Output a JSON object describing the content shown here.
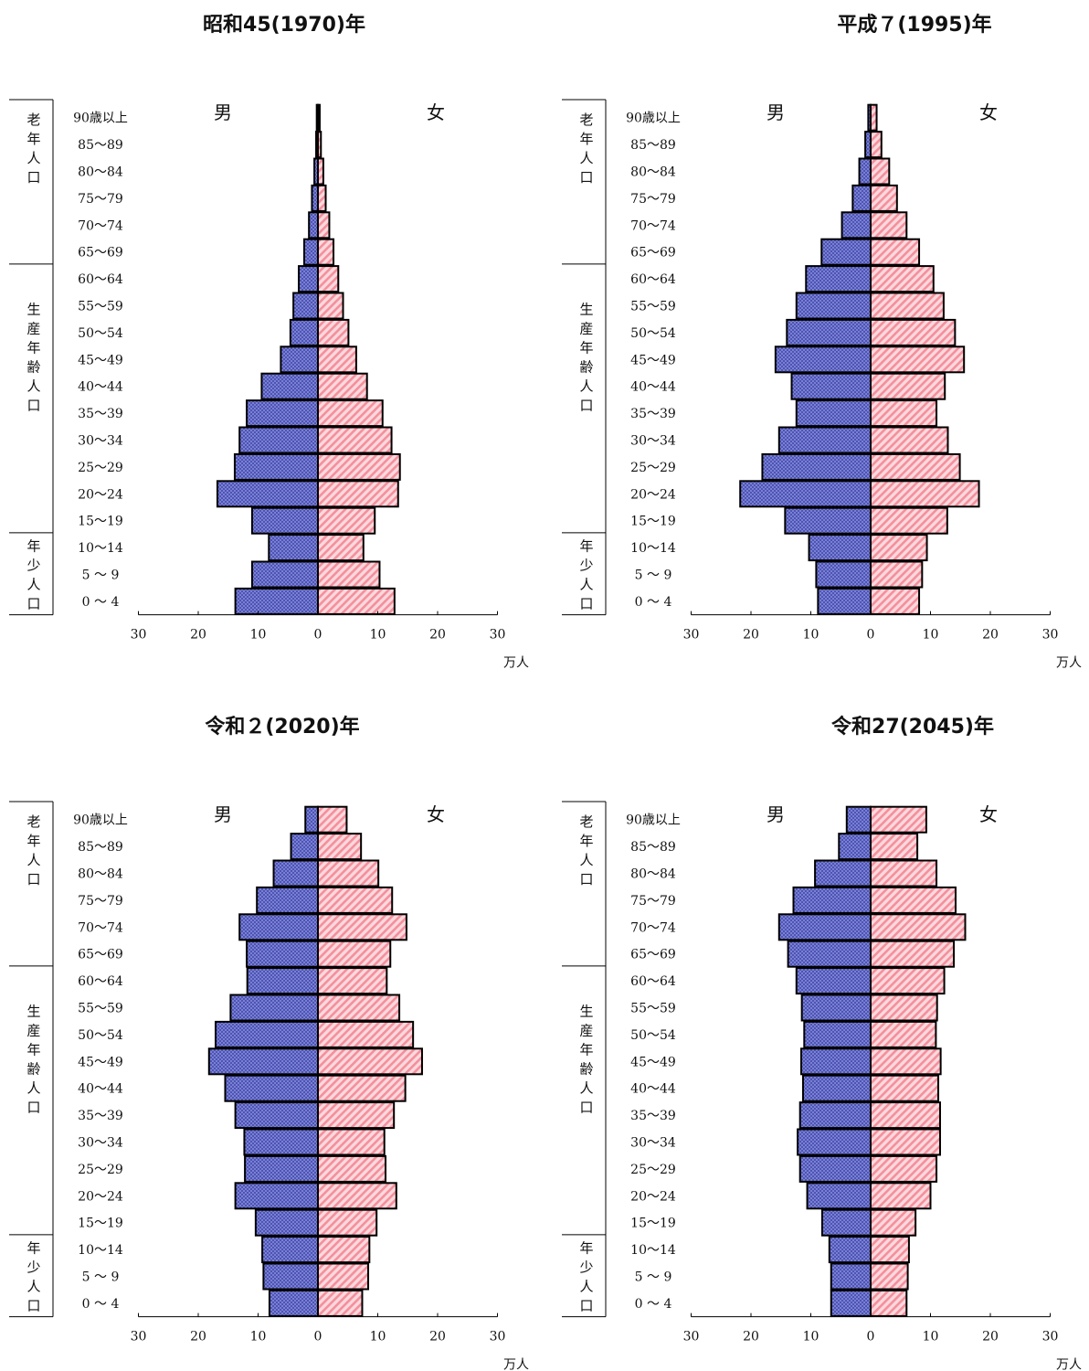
{
  "colors": {
    "male_fill": "#4d54b4",
    "male_stripe": "#7a80d2",
    "female_fill": "#ffd8dd",
    "female_stripe": "#f2909c",
    "bar_stroke": "#000000"
  },
  "age_labels": [
    "90歳以上",
    "85～89",
    "80～84",
    "75～79",
    "70～74",
    "65～69",
    "60～64",
    "55～59",
    "50～54",
    "45～49",
    "40～44",
    "35～39",
    "30～34",
    "25～29",
    "20～24",
    "15～19",
    "10～14",
    "5 ～ 9",
    "0 ～ 4"
  ],
  "group_labels": [
    "老年人口",
    "生産年齢人口",
    "年少人口"
  ],
  "sex_labels": {
    "male": "男",
    "female": "女"
  },
  "x_ticks": [
    "30",
    "20",
    "10",
    "0",
    "10",
    "20",
    "30"
  ],
  "unit": "万人",
  "chart_data": [
    {
      "type": "bar",
      "title": "昭和45(1970)年",
      "categories": [
        "90歳以上",
        "85～89",
        "80～84",
        "75～79",
        "70～74",
        "65～69",
        "60～64",
        "55～59",
        "50～54",
        "45～49",
        "40～44",
        "35～39",
        "30～34",
        "25～29",
        "20～24",
        "15～19",
        "10～14",
        "5 ～ 9",
        "0 ～ 4"
      ],
      "series": [
        {
          "name": "男",
          "values": [
            0.2,
            0.3,
            0.6,
            1.0,
            1.5,
            2.3,
            3.2,
            4.1,
            4.6,
            6.2,
            9.4,
            11.9,
            13.1,
            13.9,
            16.8,
            11.0,
            8.2,
            11.0,
            13.8
          ]
        },
        {
          "name": "女",
          "values": [
            0.3,
            0.5,
            0.9,
            1.3,
            1.9,
            2.6,
            3.4,
            4.2,
            5.1,
            6.4,
            8.2,
            10.8,
            12.3,
            13.7,
            13.4,
            9.5,
            7.6,
            10.3,
            12.8
          ]
        }
      ],
      "xlim": [
        -30,
        30
      ],
      "xlabel": "万人"
    },
    {
      "type": "bar",
      "title": "平成７(1995)年",
      "categories": [
        "90歳以上",
        "85～89",
        "80～84",
        "75～79",
        "70～74",
        "65～69",
        "60～64",
        "55～59",
        "50～54",
        "45～49",
        "40～44",
        "35～39",
        "30～34",
        "25～29",
        "20～24",
        "15～19",
        "10～14",
        "5 ～ 9",
        "0 ～ 4"
      ],
      "series": [
        {
          "name": "男",
          "values": [
            0.4,
            0.9,
            1.9,
            3.0,
            4.8,
            8.2,
            10.8,
            12.4,
            14.0,
            15.9,
            13.2,
            12.4,
            15.3,
            18.1,
            21.8,
            14.3,
            10.3,
            9.1,
            8.8
          ]
        },
        {
          "name": "女",
          "values": [
            1.0,
            1.8,
            3.1,
            4.4,
            6.0,
            8.1,
            10.5,
            12.2,
            14.1,
            15.6,
            12.4,
            11.0,
            12.9,
            14.9,
            18.1,
            12.8,
            9.4,
            8.6,
            8.1
          ]
        }
      ],
      "xlim": [
        -30,
        30
      ],
      "xlabel": "万人"
    },
    {
      "type": "bar",
      "title": "令和２(2020)年",
      "categories": [
        "90歳以上",
        "85～89",
        "80～84",
        "75～79",
        "70～74",
        "65～69",
        "60～64",
        "55～59",
        "50～54",
        "45～49",
        "40～44",
        "35～39",
        "30～34",
        "25～29",
        "20～24",
        "15～19",
        "10～14",
        "5 ～ 9",
        "0 ～ 4"
      ],
      "series": [
        {
          "name": "男",
          "values": [
            2.1,
            4.5,
            7.4,
            10.2,
            13.1,
            11.9,
            11.8,
            14.6,
            17.1,
            18.2,
            15.5,
            13.8,
            12.3,
            12.2,
            13.8,
            10.4,
            9.3,
            9.1,
            8.1
          ]
        },
        {
          "name": "女",
          "values": [
            4.8,
            7.2,
            10.1,
            12.4,
            14.8,
            12.1,
            11.5,
            13.6,
            15.9,
            17.4,
            14.6,
            12.7,
            11.1,
            11.3,
            13.1,
            9.8,
            8.6,
            8.4,
            7.4
          ]
        }
      ],
      "xlim": [
        -30,
        30
      ],
      "xlabel": "万人"
    },
    {
      "type": "bar",
      "title": "令和27(2045)年",
      "categories": [
        "90歳以上",
        "85～89",
        "80～84",
        "75～79",
        "70～74",
        "65～69",
        "60～64",
        "55～59",
        "50～54",
        "45～49",
        "40～44",
        "35～39",
        "30～34",
        "25～29",
        "20～24",
        "15～19",
        "10～14",
        "5 ～ 9",
        "0 ～ 4"
      ],
      "series": [
        {
          "name": "男",
          "values": [
            4.0,
            5.3,
            9.3,
            12.9,
            15.3,
            13.8,
            12.4,
            11.5,
            11.1,
            11.6,
            11.3,
            11.8,
            12.2,
            11.8,
            10.6,
            8.1,
            6.9,
            6.6,
            6.6
          ]
        },
        {
          "name": "女",
          "values": [
            9.3,
            7.8,
            11.0,
            14.2,
            15.8,
            13.9,
            12.3,
            11.1,
            10.9,
            11.7,
            11.3,
            11.6,
            11.6,
            11.0,
            10.0,
            7.5,
            6.4,
            6.2,
            6.0
          ]
        }
      ],
      "xlim": [
        -30,
        30
      ],
      "xlabel": "万人"
    }
  ]
}
